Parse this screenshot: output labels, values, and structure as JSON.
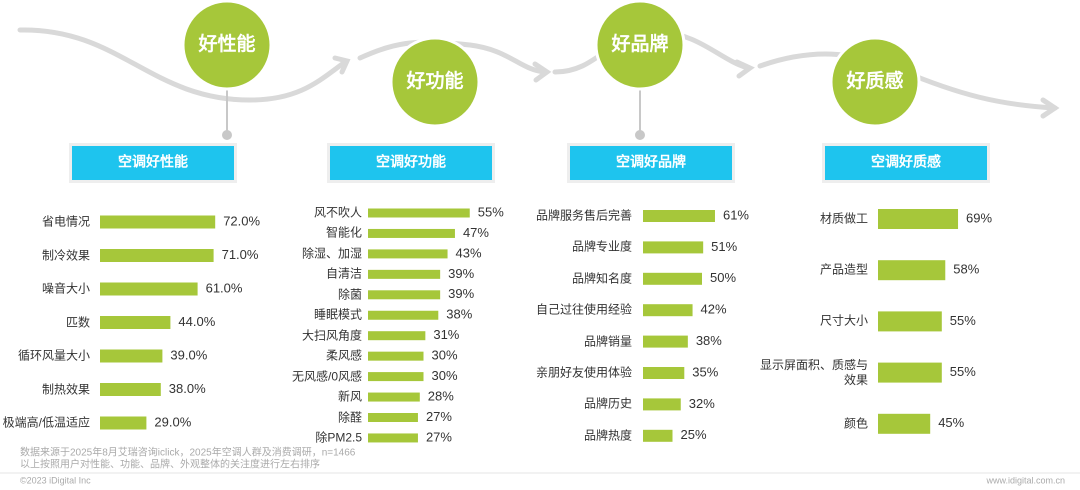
{
  "flow": [
    "好性能",
    "好功能",
    "好品牌",
    "好质感"
  ],
  "chart_data": [
    {
      "type": "bar",
      "title": "空调好性能",
      "color": "#a6c73a",
      "categories": [
        "省电情况",
        "制冷效果",
        "噪音大小",
        "匹数",
        "循环风量大小",
        "制热效果",
        "极端高/低温适应"
      ],
      "values": [
        72.0,
        71.0,
        61.0,
        44.0,
        39.0,
        38.0,
        29.0
      ],
      "value_labels": [
        "72.0%",
        "71.0%",
        "61.0%",
        "44.0%",
        "39.0%",
        "38.0%",
        "29.0%"
      ]
    },
    {
      "type": "bar",
      "title": "空调好功能",
      "color": "#a6c73a",
      "categories": [
        "风不吹人",
        "智能化",
        "除湿、加湿",
        "自清洁",
        "除菌",
        "睡眠模式",
        "大扫风角度",
        "柔风感",
        "无风感/0风感",
        "新风",
        "除醛",
        "除PM2.5"
      ],
      "values": [
        55,
        47,
        43,
        39,
        39,
        38,
        31,
        30,
        30,
        28,
        27,
        27
      ],
      "value_labels": [
        "55%",
        "47%",
        "43%",
        "39%",
        "39%",
        "38%",
        "31%",
        "30%",
        "30%",
        "28%",
        "27%",
        "27%"
      ]
    },
    {
      "type": "bar",
      "title": "空调好品牌",
      "color": "#a6c73a",
      "categories": [
        "品牌服务售后完善",
        "品牌专业度",
        "品牌知名度",
        "自己过往使用经验",
        "品牌销量",
        "亲朋好友使用体验",
        "品牌历史",
        "品牌热度"
      ],
      "values": [
        61,
        51,
        50,
        42,
        38,
        35,
        32,
        25
      ],
      "value_labels": [
        "61%",
        "51%",
        "50%",
        "42%",
        "38%",
        "35%",
        "32%",
        "25%"
      ]
    },
    {
      "type": "bar",
      "title": "空调好质感",
      "color": "#a6c73a",
      "categories": [
        "材质做工",
        "产品造型",
        "尺寸大小",
        "显示屏面积、质感与效果",
        "颜色"
      ],
      "values": [
        69,
        58,
        55,
        55,
        45
      ],
      "value_labels": [
        "69%",
        "58%",
        "55%",
        "55%",
        "45%"
      ]
    }
  ],
  "source": [
    "数据来源于2025年8月艾瑞咨询iclick，2025年空调人群及消费调研，n=1466",
    "以上按照用户对性能、功能、品牌、外观整体的关注度进行左右排序"
  ],
  "footer": {
    "copyright": "©2023 iDigital Inc",
    "website": "www.idigital.com.cn"
  }
}
